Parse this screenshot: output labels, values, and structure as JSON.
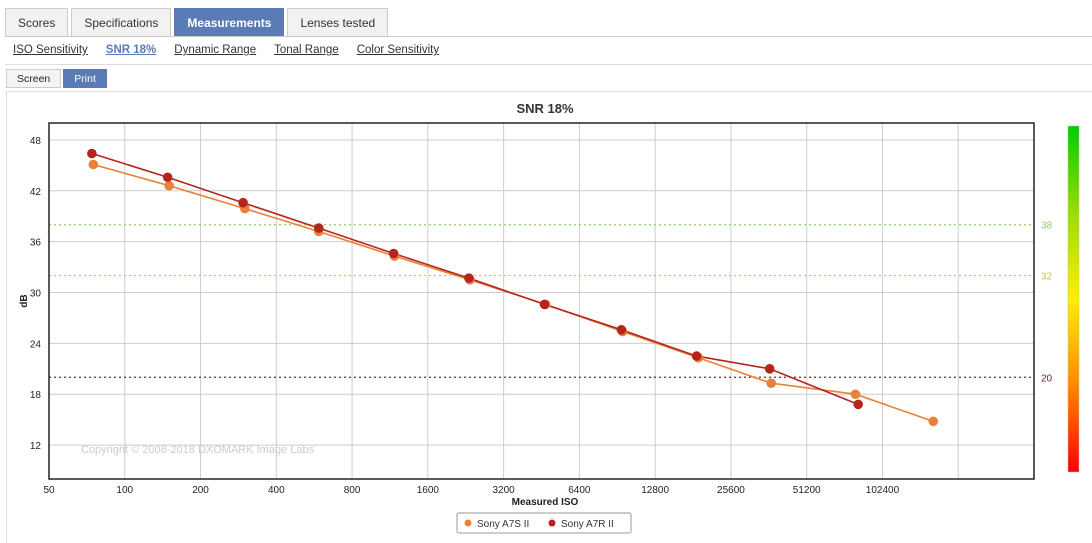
{
  "tabs": [
    {
      "label": "Scores"
    },
    {
      "label": "Specifications"
    },
    {
      "label": "Measurements"
    },
    {
      "label": "Lenses tested"
    }
  ],
  "subnav": [
    {
      "label": "ISO Sensitivity"
    },
    {
      "label": "SNR 18%"
    },
    {
      "label": "Dynamic Range"
    },
    {
      "label": "Tonal Range"
    },
    {
      "label": "Color Sensitivity"
    }
  ],
  "modes": [
    {
      "label": "Screen"
    },
    {
      "label": "Print"
    }
  ],
  "colors": {
    "accent": "#5a7bb5",
    "series_a7s": "#e8813a",
    "series_a7r": "#b5251c",
    "ref_high": "#8fd16a",
    "ref_mid": "#c9c24a",
    "ref_low": "#6b2a2a"
  },
  "chart_data": {
    "type": "line",
    "title": "SNR 18%",
    "xlabel": "Measured ISO",
    "ylabel": "dB",
    "x_scale": "log2",
    "x_ticks": [
      50,
      100,
      200,
      400,
      800,
      1600,
      3200,
      6400,
      12800,
      25600,
      51200,
      102400
    ],
    "x_tick_labels": [
      "50",
      "100",
      "200",
      "400",
      "800",
      "1600",
      "3200",
      "6400",
      "12800",
      "25600",
      "51200",
      "102400"
    ],
    "xlim": [
      50,
      409600
    ],
    "ylim": [
      8,
      50
    ],
    "y_ticks": [
      12,
      18,
      24,
      30,
      36,
      42,
      48
    ],
    "y_tick_labels": [
      "12",
      "18",
      "24",
      "30",
      "36",
      "42",
      "48"
    ],
    "grid": true,
    "legend": "bottom-center",
    "annotation": "Copyright © 2008-2018 DXOMARK Image Labs",
    "reference_lines": [
      {
        "value": 38,
        "label": "38",
        "style": "dotted"
      },
      {
        "value": 32,
        "label": "32",
        "style": "dotted"
      },
      {
        "value": 20,
        "label": "20",
        "style": "dotted"
      }
    ],
    "color_scale": [
      "#00cc00",
      "#99dd00",
      "#ffee00",
      "#ff8800",
      "#ff0000"
    ],
    "series": [
      {
        "name": "Sony A7S II",
        "points": [
          {
            "x": 75,
            "y": 45.1
          },
          {
            "x": 150,
            "y": 42.6
          },
          {
            "x": 300,
            "y": 39.9
          },
          {
            "x": 590,
            "y": 37.2
          },
          {
            "x": 1180,
            "y": 34.3
          },
          {
            "x": 2350,
            "y": 31.5
          },
          {
            "x": 4700,
            "y": 28.6
          },
          {
            "x": 9500,
            "y": 25.4
          },
          {
            "x": 19000,
            "y": 22.3
          },
          {
            "x": 37000,
            "y": 19.3
          },
          {
            "x": 80000,
            "y": 18.0
          },
          {
            "x": 163000,
            "y": 14.8
          }
        ]
      },
      {
        "name": "Sony A7R II",
        "points": [
          {
            "x": 74,
            "y": 46.4
          },
          {
            "x": 148,
            "y": 43.6
          },
          {
            "x": 295,
            "y": 40.6
          },
          {
            "x": 590,
            "y": 37.6
          },
          {
            "x": 1170,
            "y": 34.6
          },
          {
            "x": 2330,
            "y": 31.7
          },
          {
            "x": 4650,
            "y": 28.6
          },
          {
            "x": 9400,
            "y": 25.6
          },
          {
            "x": 18700,
            "y": 22.5
          },
          {
            "x": 36500,
            "y": 21.0
          },
          {
            "x": 82000,
            "y": 16.8
          }
        ]
      }
    ]
  }
}
